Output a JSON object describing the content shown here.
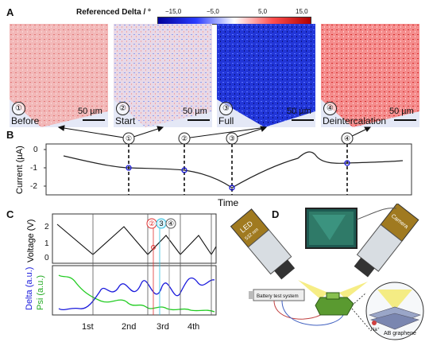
{
  "panelA": {
    "letter": "A",
    "colorbar_title": "Referenced Delta / °",
    "colorbar_ticks": [
      "−15,0",
      "−5,0",
      "5,0",
      "15,0"
    ],
    "colorbar_colors": [
      "#0000a8",
      "#ffffff",
      "#c00000"
    ],
    "maps": [
      {
        "num": "①",
        "stage": "Before",
        "scale": "50 µm",
        "tint": "red"
      },
      {
        "num": "②",
        "stage": "Start",
        "scale": "50 µm",
        "tint": "mixed"
      },
      {
        "num": "③",
        "stage": "Full",
        "scale": "50 µm",
        "tint": "blue"
      },
      {
        "num": "④",
        "stage": "Deintercalation",
        "scale": "50 µm",
        "tint": "red"
      }
    ]
  },
  "panelB": {
    "letter": "B",
    "ylabel": "Current (µA)",
    "xlabel": "Time",
    "yticks": [
      "0",
      "-1",
      "-2"
    ],
    "markers": [
      "①",
      "②",
      "③",
      "④"
    ],
    "marker_values": [
      -1.0,
      -1.15,
      -2.2,
      -0.65
    ]
  },
  "panelC": {
    "letter": "C",
    "voltage_ylabel": "Voltage (V)",
    "voltage_ticks": [
      "2",
      "1",
      "0"
    ],
    "delta_label": "Delta (a.u.)",
    "psi_label": "Psi (a.u.)",
    "cycle_labels": [
      "1st",
      "2nd",
      "3rd",
      "4th"
    ],
    "markers": [
      "②",
      "3",
      "④"
    ],
    "voltage_color": "#111111",
    "delta_color": "#1a1adc",
    "psi_color": "#22cc22"
  },
  "panelD": {
    "letter": "D",
    "led_label": "LED",
    "led_sublabel": "532 nm",
    "camera_label": "Camera",
    "battery_label": "Battery test system",
    "graphene_label": "AB graphene",
    "na_label": "Na⁺"
  }
}
